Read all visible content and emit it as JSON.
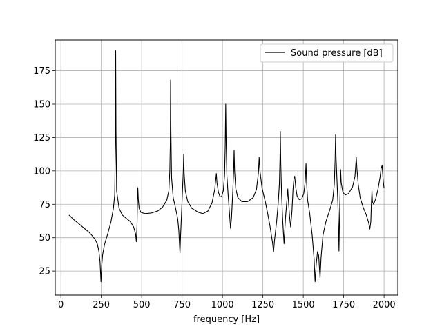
{
  "chart_data": {
    "type": "line",
    "title": "",
    "xlabel": "frequency [Hz]",
    "ylabel": "",
    "xlim": [
      -35,
      2085
    ],
    "ylim": [
      7,
      198
    ],
    "xticks": [
      0,
      250,
      500,
      750,
      1000,
      1250,
      1500,
      1750,
      2000
    ],
    "xtick_labels": [
      "0",
      "250",
      "500",
      "750",
      "1000",
      "1250",
      "1500",
      "1750",
      "2000"
    ],
    "yticks": [
      25,
      50,
      75,
      100,
      125,
      150,
      175
    ],
    "ytick_labels": [
      "25",
      "50",
      "75",
      "100",
      "125",
      "150",
      "175"
    ],
    "grid": true,
    "legend": {
      "position": "top-right"
    },
    "series": [
      {
        "name": "Sound pressure [dB]",
        "color": "#000000",
        "points": [
          [
            50,
            67
          ],
          [
            80,
            63.5
          ],
          [
            110,
            60.5
          ],
          [
            140,
            57.5
          ],
          [
            165,
            55
          ],
          [
            175,
            54
          ],
          [
            190,
            52
          ],
          [
            210,
            49
          ],
          [
            225,
            45.5
          ],
          [
            235,
            40
          ],
          [
            242,
            32
          ],
          [
            248,
            17
          ],
          [
            252,
            28
          ],
          [
            258,
            37
          ],
          [
            270,
            45
          ],
          [
            290,
            53
          ],
          [
            310,
            62
          ],
          [
            325,
            72
          ],
          [
            333,
            82
          ],
          [
            337,
            120
          ],
          [
            339,
            190
          ],
          [
            341,
            130
          ],
          [
            345,
            85
          ],
          [
            360,
            72
          ],
          [
            380,
            67
          ],
          [
            400,
            65
          ],
          [
            430,
            62
          ],
          [
            450,
            58
          ],
          [
            462,
            53
          ],
          [
            467,
            47
          ],
          [
            471,
            58
          ],
          [
            474,
            79
          ],
          [
            476,
            87.5
          ],
          [
            479,
            79
          ],
          [
            484,
            72
          ],
          [
            495,
            69
          ],
          [
            520,
            68
          ],
          [
            560,
            68.5
          ],
          [
            600,
            70
          ],
          [
            630,
            73
          ],
          [
            655,
            78
          ],
          [
            668,
            85
          ],
          [
            674,
            100
          ],
          [
            677,
            120
          ],
          [
            679,
            168
          ],
          [
            681,
            130
          ],
          [
            685,
            95
          ],
          [
            695,
            80
          ],
          [
            710,
            72
          ],
          [
            723,
            64
          ],
          [
            730,
            55
          ],
          [
            734,
            45
          ],
          [
            737,
            38.5
          ],
          [
            741,
            52
          ],
          [
            748,
            72
          ],
          [
            754,
            90
          ],
          [
            757,
            98
          ],
          [
            760,
            112.5
          ],
          [
            763,
            98
          ],
          [
            770,
            85
          ],
          [
            785,
            77
          ],
          [
            810,
            72
          ],
          [
            850,
            69
          ],
          [
            880,
            68
          ],
          [
            910,
            70
          ],
          [
            935,
            76
          ],
          [
            952,
            86
          ],
          [
            962,
            98
          ],
          [
            966,
            91
          ],
          [
            975,
            84
          ],
          [
            985,
            80.5
          ],
          [
            995,
            81
          ],
          [
            1005,
            85
          ],
          [
            1013,
            97
          ],
          [
            1017,
            120
          ],
          [
            1020,
            150
          ],
          [
            1023,
            120
          ],
          [
            1027,
            97
          ],
          [
            1035,
            82
          ],
          [
            1044,
            67
          ],
          [
            1050,
            57
          ],
          [
            1056,
            65
          ],
          [
            1064,
            85
          ],
          [
            1069,
            100
          ],
          [
            1072,
            115.5
          ],
          [
            1075,
            100
          ],
          [
            1082,
            87
          ],
          [
            1095,
            80
          ],
          [
            1120,
            77
          ],
          [
            1155,
            77
          ],
          [
            1190,
            80
          ],
          [
            1210,
            86
          ],
          [
            1222,
            98
          ],
          [
            1227,
            110
          ],
          [
            1232,
            100
          ],
          [
            1245,
            87
          ],
          [
            1265,
            77
          ],
          [
            1280,
            68
          ],
          [
            1295,
            58
          ],
          [
            1310,
            46
          ],
          [
            1316,
            39.5
          ],
          [
            1322,
            48
          ],
          [
            1335,
            62
          ],
          [
            1345,
            76
          ],
          [
            1352,
            90
          ],
          [
            1356,
            110
          ],
          [
            1358,
            129.5
          ],
          [
            1361,
            105
          ],
          [
            1366,
            82
          ],
          [
            1373,
            62
          ],
          [
            1381,
            45.5
          ],
          [
            1390,
            65
          ],
          [
            1400,
            80
          ],
          [
            1404,
            86.5
          ],
          [
            1408,
            78
          ],
          [
            1415,
            66
          ],
          [
            1422,
            58
          ],
          [
            1430,
            70
          ],
          [
            1437,
            87
          ],
          [
            1443,
            95
          ],
          [
            1447,
            96
          ],
          [
            1453,
            88
          ],
          [
            1462,
            81
          ],
          [
            1475,
            78.5
          ],
          [
            1490,
            79
          ],
          [
            1503,
            83
          ],
          [
            1512,
            92
          ],
          [
            1517,
            105.5
          ],
          [
            1521,
            90
          ],
          [
            1527,
            78
          ],
          [
            1540,
            68
          ],
          [
            1555,
            52
          ],
          [
            1567,
            34
          ],
          [
            1573,
            17
          ],
          [
            1580,
            30
          ],
          [
            1588,
            39.5
          ],
          [
            1595,
            37
          ],
          [
            1600,
            27
          ],
          [
            1604,
            20
          ],
          [
            1610,
            35
          ],
          [
            1622,
            52
          ],
          [
            1640,
            62
          ],
          [
            1662,
            70
          ],
          [
            1682,
            78
          ],
          [
            1692,
            90
          ],
          [
            1697,
            108
          ],
          [
            1700,
            127
          ],
          [
            1703,
            110
          ],
          [
            1708,
            95
          ],
          [
            1714,
            77
          ],
          [
            1718,
            60
          ],
          [
            1721,
            40
          ],
          [
            1724,
            62
          ],
          [
            1728,
            85
          ],
          [
            1731,
            101
          ],
          [
            1735,
            91
          ],
          [
            1745,
            84
          ],
          [
            1760,
            82
          ],
          [
            1780,
            83
          ],
          [
            1805,
            88
          ],
          [
            1820,
            96
          ],
          [
            1828,
            110
          ],
          [
            1832,
            102
          ],
          [
            1840,
            90
          ],
          [
            1852,
            80
          ],
          [
            1870,
            73
          ],
          [
            1890,
            67
          ],
          [
            1905,
            61
          ],
          [
            1912,
            56.5
          ],
          [
            1918,
            62
          ],
          [
            1922,
            77
          ],
          [
            1925,
            85
          ],
          [
            1928,
            77
          ],
          [
            1935,
            75
          ],
          [
            1948,
            79
          ],
          [
            1962,
            86
          ],
          [
            1975,
            95
          ],
          [
            1982,
            102
          ],
          [
            1988,
            104
          ],
          [
            1995,
            92
          ],
          [
            2000,
            87
          ]
        ]
      }
    ]
  }
}
